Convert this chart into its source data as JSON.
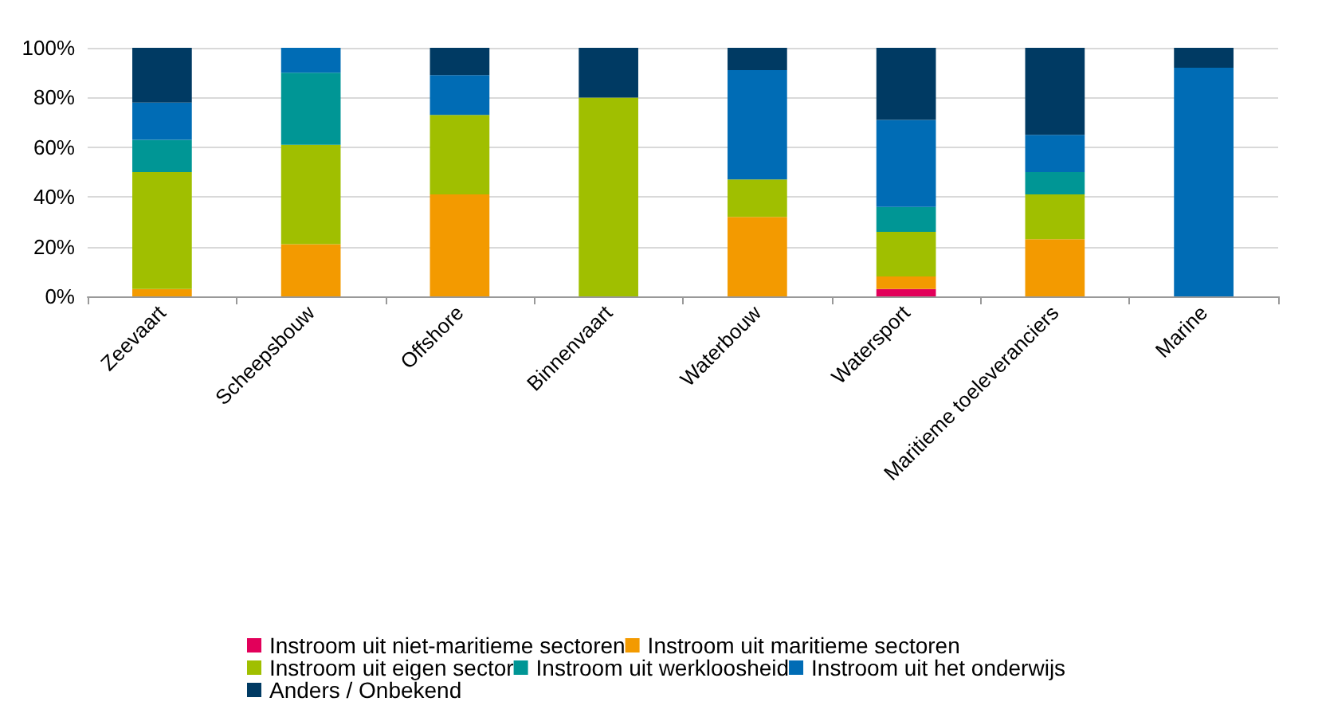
{
  "chart_data": {
    "type": "bar",
    "stacked": true,
    "categories": [
      "Zeevaart",
      "Scheepsbouw",
      "Offshore",
      "Binnenvaart",
      "Waterbouw",
      "Watersport",
      "Maritieme toeleveranciers",
      "Marine"
    ],
    "series": [
      {
        "name": "Instroom uit niet-maritieme sectoren",
        "color": "#e2005a",
        "values": [
          0,
          0,
          0,
          0,
          0,
          3,
          0,
          0
        ]
      },
      {
        "name": "Instroom uit maritieme sectoren",
        "color": "#f39a00",
        "values": [
          3,
          21,
          41,
          0,
          32,
          5,
          23,
          0
        ]
      },
      {
        "name": "Instroom uit eigen sector",
        "color": "#a0bf00",
        "values": [
          47,
          40,
          32,
          80,
          15,
          18,
          18,
          0
        ]
      },
      {
        "name": "Instroom uit werkloosheid",
        "color": "#009695",
        "values": [
          13,
          29,
          0,
          0,
          0,
          10,
          9,
          0
        ]
      },
      {
        "name": "Instroom uit het onderwijs",
        "color": "#006cb5",
        "values": [
          15,
          10,
          16,
          0,
          44,
          35,
          15,
          92
        ]
      },
      {
        "name": "Anders / Onbekend",
        "color": "#003a63",
        "values": [
          22,
          0,
          11,
          20,
          9,
          29,
          35,
          8
        ]
      }
    ],
    "ylim": [
      0,
      100
    ],
    "yticks": [
      {
        "value": 0,
        "label": "0%"
      },
      {
        "value": 20,
        "label": "20%"
      },
      {
        "value": 40,
        "label": "40%"
      },
      {
        "value": 60,
        "label": "60%"
      },
      {
        "value": 80,
        "label": "80%"
      },
      {
        "value": 100,
        "label": "100%"
      }
    ],
    "grid": "y",
    "legend": "bottom"
  }
}
